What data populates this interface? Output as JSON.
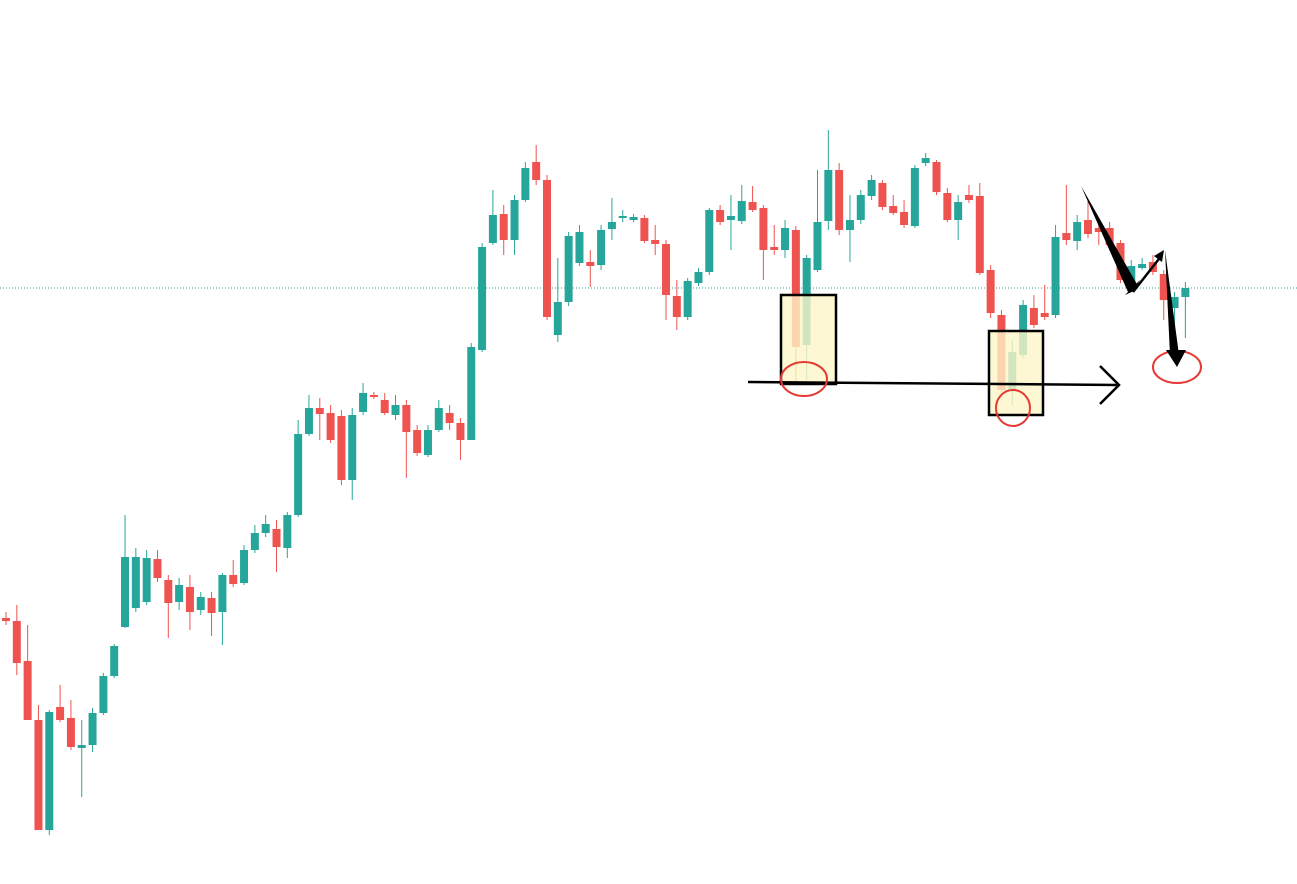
{
  "chart_data": {
    "type": "candlestick",
    "open": [
      266,
      263,
      223,
      164,
      54,
      177,
      166,
      136,
      139,
      171,
      208,
      257,
      276,
      282,
      325,
      304,
      282,
      297,
      274,
      286,
      272,
      309,
      301,
      334,
      351,
      355,
      336,
      369,
      450,
      476,
      471,
      468,
      404,
      472,
      489,
      484,
      469,
      479,
      454,
      429,
      454,
      471,
      461,
      444,
      534,
      641,
      670,
      644,
      684,
      722,
      704,
      549,
      582,
      621,
      622,
      619,
      655,
      666,
      664,
      666,
      644,
      640,
      588,
      567,
      601,
      612,
      674,
      664,
      663,
      682,
      676,
      637,
      634,
      654,
      539,
      614,
      663,
      714,
      654,
      664,
      688,
      701,
      678,
      672,
      658,
      721,
      722,
      691,
      664,
      689,
      688,
      614,
      569,
      494,
      529,
      576,
      571,
      569,
      651,
      643,
      664,
      656,
      656,
      641,
      601,
      616,
      622,
      610,
      576,
      587
    ],
    "high": [
      272,
      279,
      259,
      179,
      174,
      199,
      184,
      164,
      176,
      211,
      240,
      369,
      336,
      334,
      334,
      309,
      306,
      309,
      292,
      292,
      311,
      324,
      339,
      359,
      369,
      364,
      372,
      464,
      489,
      486,
      479,
      474,
      476,
      501,
      492,
      491,
      489,
      484,
      459,
      459,
      484,
      479,
      466,
      541,
      641,
      694,
      679,
      689,
      722,
      739,
      709,
      626,
      652,
      659,
      634,
      659,
      686,
      674,
      670,
      669,
      659,
      644,
      604,
      606,
      616,
      676,
      679,
      689,
      699,
      698,
      679,
      659,
      664,
      658,
      629,
      714,
      754,
      721,
      689,
      694,
      709,
      704,
      689,
      684,
      719,
      731,
      724,
      696,
      689,
      699,
      701,
      619,
      574,
      544,
      584,
      589,
      599,
      659,
      699,
      669,
      684,
      664,
      662,
      644,
      624,
      626,
      629,
      614,
      592,
      602
    ],
    "low": [
      259,
      209,
      164,
      54,
      49,
      162,
      134,
      87,
      132,
      169,
      206,
      256,
      272,
      279,
      302,
      246,
      274,
      254,
      269,
      248,
      239,
      297,
      299,
      331,
      347,
      312,
      326,
      367,
      448,
      444,
      441,
      399,
      384,
      469,
      485,
      469,
      464,
      406,
      428,
      427,
      452,
      454,
      424,
      444,
      532,
      639,
      629,
      629,
      682,
      699,
      564,
      542,
      578,
      618,
      597,
      614,
      644,
      662,
      662,
      641,
      629,
      564,
      554,
      564,
      598,
      609,
      659,
      634,
      660,
      672,
      604,
      629,
      626,
      499,
      504,
      612,
      654,
      649,
      622,
      660,
      684,
      674,
      669,
      656,
      656,
      718,
      689,
      662,
      644,
      681,
      609,
      566,
      489,
      479,
      526,
      556,
      564,
      566,
      639,
      634,
      646,
      639,
      634,
      601,
      599,
      614,
      609,
      564,
      549,
      546
    ],
    "close": [
      263,
      221,
      164,
      54,
      172,
      164,
      137,
      139,
      171,
      208,
      238,
      327,
      327,
      326,
      306,
      281,
      299,
      272,
      287,
      271,
      309,
      300,
      334,
      351,
      360,
      337,
      369,
      450,
      476,
      470,
      444,
      404,
      469,
      491,
      487,
      471,
      479,
      452,
      431,
      454,
      476,
      461,
      444,
      537,
      637,
      669,
      644,
      684,
      716,
      704,
      567,
      582,
      648,
      652,
      618,
      654,
      662,
      668,
      667,
      643,
      640,
      589,
      567,
      603,
      612,
      674,
      662,
      668,
      683,
      674,
      634,
      634,
      656,
      537,
      626,
      662,
      714,
      654,
      664,
      689,
      704,
      677,
      671,
      659,
      716,
      726,
      692,
      664,
      682,
      684,
      611,
      571,
      494,
      532,
      579,
      559,
      567,
      647,
      644,
      662,
      650,
      652,
      639,
      604,
      618,
      620,
      612,
      584,
      587,
      596
    ],
    "up_color": "#26a69a",
    "down_color": "#ef5350",
    "ylim": [
      0,
      884
    ],
    "last_price_line": true
  }
}
